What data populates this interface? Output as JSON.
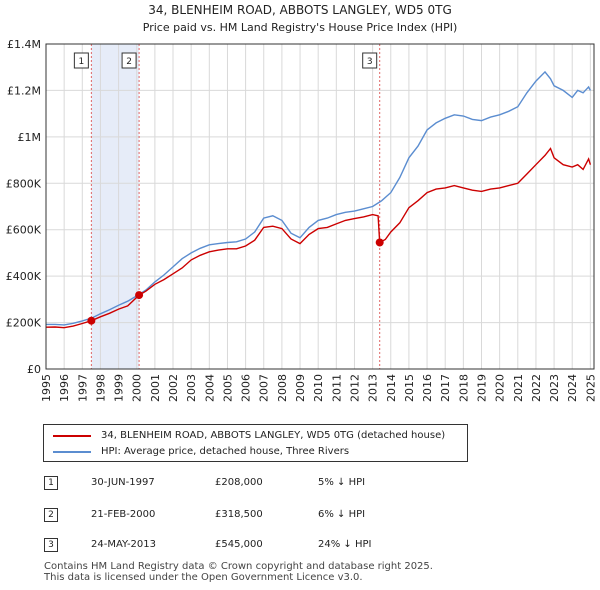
{
  "chart_data": {
    "type": "line",
    "title": "34, BLENHEIM ROAD, ABBOTS LANGLEY, WD5 0TG",
    "subtitle": "Price paid vs. HM Land Registry's House Price Index (HPI)",
    "xlim": [
      1995,
      2025.2
    ],
    "ylim": [
      0,
      1400000
    ],
    "x_ticks": [
      1995,
      1996,
      1997,
      1998,
      1999,
      2000,
      2001,
      2002,
      2003,
      2004,
      2005,
      2006,
      2007,
      2008,
      2009,
      2010,
      2011,
      2012,
      2013,
      2014,
      2015,
      2016,
      2017,
      2018,
      2019,
      2020,
      2021,
      2022,
      2023,
      2024,
      2025
    ],
    "x_tick_labels": [
      "1995",
      "1996",
      "1997",
      "1998",
      "1999",
      "2000",
      "2001",
      "2002",
      "2003",
      "2004",
      "2005",
      "2006",
      "2007",
      "2008",
      "2009",
      "2010",
      "2011",
      "2012",
      "2013",
      "2014",
      "2015",
      "2016",
      "2017",
      "2018",
      "2019",
      "2020",
      "2021",
      "2022",
      "2023",
      "2024",
      "2025"
    ],
    "y_ticks": [
      0,
      200000,
      400000,
      600000,
      800000,
      1000000,
      1200000,
      1400000
    ],
    "y_tick_labels": [
      "£0",
      "£200K",
      "£400K",
      "£600K",
      "£800K",
      "£1M",
      "£1.2M",
      "£1.4M"
    ],
    "shaded_spans": [
      [
        1997.5,
        2000.13
      ],
      [
        2013.39,
        2013.39
      ]
    ],
    "series": [
      {
        "name": "34, BLENHEIM ROAD, ABBOTS LANGLEY, WD5 0TG (detached house)",
        "color": "#cc0000",
        "x": [
          1995.0,
          1995.5,
          1996.0,
          1996.5,
          1997.0,
          1997.5,
          1998.0,
          1998.5,
          1999.0,
          1999.5,
          2000.13,
          2000.5,
          2001.0,
          2001.5,
          2002.0,
          2002.5,
          2003.0,
          2003.5,
          2004.0,
          2004.5,
          2005.0,
          2005.5,
          2006.0,
          2006.5,
          2007.0,
          2007.5,
          2008.0,
          2008.5,
          2009.0,
          2009.5,
          2010.0,
          2010.5,
          2011.0,
          2011.5,
          2012.0,
          2012.5,
          2013.0,
          2013.3,
          2013.39,
          2013.7,
          2014.0,
          2014.5,
          2015.0,
          2015.5,
          2016.0,
          2016.5,
          2017.0,
          2017.5,
          2018.0,
          2018.5,
          2019.0,
          2019.5,
          2020.0,
          2020.5,
          2021.0,
          2021.5,
          2022.0,
          2022.5,
          2022.8,
          2023.0,
          2023.5,
          2024.0,
          2024.3,
          2024.6,
          2024.9,
          2025.0
        ],
        "values": [
          180000,
          181000,
          178000,
          185000,
          196000,
          208000,
          225000,
          240000,
          258000,
          272000,
          318500,
          335000,
          365000,
          385000,
          410000,
          435000,
          470000,
          490000,
          505000,
          512000,
          518000,
          518000,
          530000,
          555000,
          610000,
          615000,
          605000,
          560000,
          540000,
          580000,
          605000,
          610000,
          625000,
          640000,
          648000,
          655000,
          665000,
          660000,
          545000,
          558000,
          590000,
          630000,
          695000,
          725000,
          760000,
          775000,
          780000,
          790000,
          780000,
          770000,
          765000,
          775000,
          780000,
          790000,
          800000,
          840000,
          880000,
          920000,
          950000,
          910000,
          880000,
          870000,
          880000,
          860000,
          905000,
          880000
        ]
      },
      {
        "name": "HPI: Average price, detached house, Three Rivers",
        "color": "#5b8dd0",
        "x": [
          1995.0,
          1995.5,
          1996.0,
          1996.5,
          1997.0,
          1997.5,
          1998.0,
          1998.5,
          1999.0,
          1999.5,
          2000.0,
          2000.5,
          2001.0,
          2001.5,
          2002.0,
          2002.5,
          2003.0,
          2003.5,
          2004.0,
          2004.5,
          2005.0,
          2005.5,
          2006.0,
          2006.5,
          2007.0,
          2007.5,
          2008.0,
          2008.5,
          2009.0,
          2009.5,
          2010.0,
          2010.5,
          2011.0,
          2011.5,
          2012.0,
          2012.5,
          2013.0,
          2013.5,
          2014.0,
          2014.5,
          2015.0,
          2015.5,
          2016.0,
          2016.5,
          2017.0,
          2017.5,
          2018.0,
          2018.5,
          2019.0,
          2019.5,
          2020.0,
          2020.5,
          2021.0,
          2021.5,
          2022.0,
          2022.5,
          2022.8,
          2023.0,
          2023.5,
          2024.0,
          2024.3,
          2024.6,
          2024.9,
          2025.0
        ],
        "values": [
          192000,
          192000,
          190000,
          197000,
          207000,
          219000,
          238000,
          255000,
          275000,
          292000,
          315000,
          340000,
          375000,
          405000,
          440000,
          475000,
          500000,
          520000,
          535000,
          540000,
          545000,
          548000,
          560000,
          590000,
          650000,
          660000,
          640000,
          585000,
          565000,
          610000,
          640000,
          650000,
          665000,
          675000,
          680000,
          690000,
          700000,
          725000,
          760000,
          825000,
          910000,
          960000,
          1030000,
          1060000,
          1080000,
          1095000,
          1090000,
          1075000,
          1070000,
          1085000,
          1095000,
          1110000,
          1130000,
          1190000,
          1240000,
          1280000,
          1250000,
          1220000,
          1200000,
          1170000,
          1200000,
          1190000,
          1215000,
          1200000
        ]
      }
    ],
    "sales": [
      {
        "num": "1",
        "x": 1997.5,
        "value": 208000
      },
      {
        "num": "2",
        "x": 2000.13,
        "value": 318500
      },
      {
        "num": "3",
        "x": 2013.39,
        "value": 545000
      }
    ]
  },
  "legend": {
    "property_label": "34, BLENHEIM ROAD, ABBOTS LANGLEY, WD5 0TG (detached house)",
    "property_color": "#cc0000",
    "hpi_label": "HPI: Average price, detached house, Three Rivers",
    "hpi_color": "#5b8dd0"
  },
  "sales_table": [
    {
      "num": "1",
      "date": "30-JUN-1997",
      "price": "£208,000",
      "hpi": "5% ↓ HPI"
    },
    {
      "num": "2",
      "date": "21-FEB-2000",
      "price": "£318,500",
      "hpi": "6% ↓ HPI"
    },
    {
      "num": "3",
      "date": "24-MAY-2013",
      "price": "£545,000",
      "hpi": "24% ↓ HPI"
    }
  ],
  "footer": {
    "line1": "Contains HM Land Registry data © Crown copyright and database right 2025.",
    "line2": "This data is licensed under the Open Government Licence v3.0."
  }
}
